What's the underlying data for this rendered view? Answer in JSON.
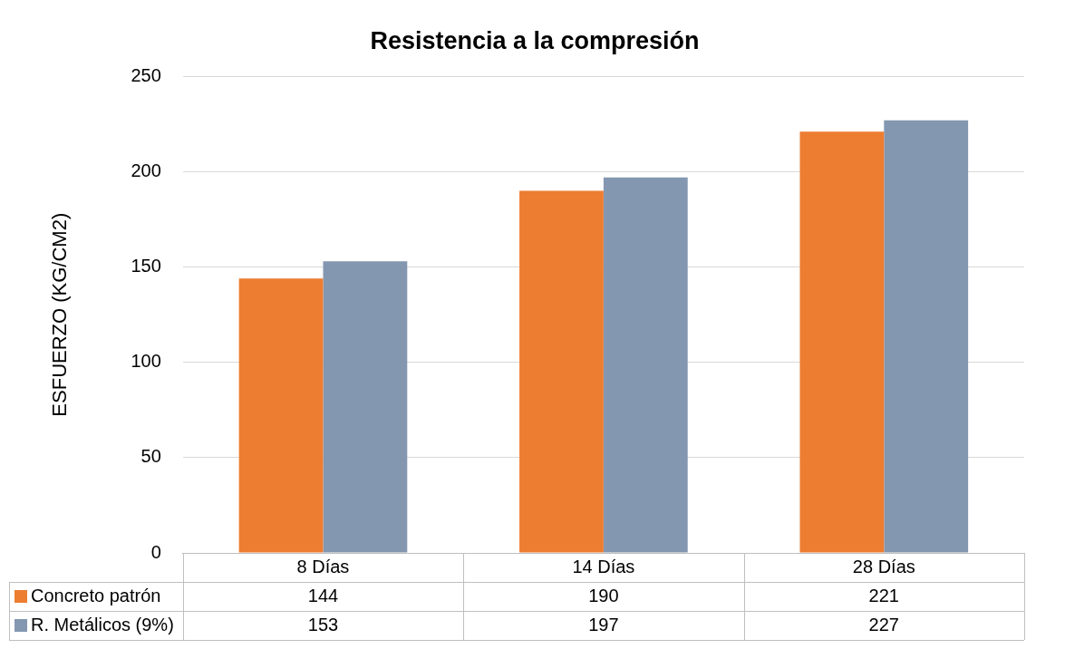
{
  "chart_data": {
    "type": "bar",
    "title": "Resistencia a la compresión",
    "ylabel": "ESFUERZO (KG/CM2)",
    "categories": [
      "8 Días",
      "14 Días",
      "28 Días"
    ],
    "series": [
      {
        "name": "Concreto patrón",
        "color": "#ed7d31",
        "values": [
          144,
          190,
          221
        ]
      },
      {
        "name": "R. Metálicos (9%)",
        "color": "#8497b0",
        "values": [
          153,
          197,
          227
        ]
      }
    ],
    "ylim": [
      0,
      250
    ],
    "yticks": [
      0,
      50,
      100,
      150,
      200,
      250
    ],
    "grid": "y",
    "legend": "bottom",
    "data_labels": true
  }
}
